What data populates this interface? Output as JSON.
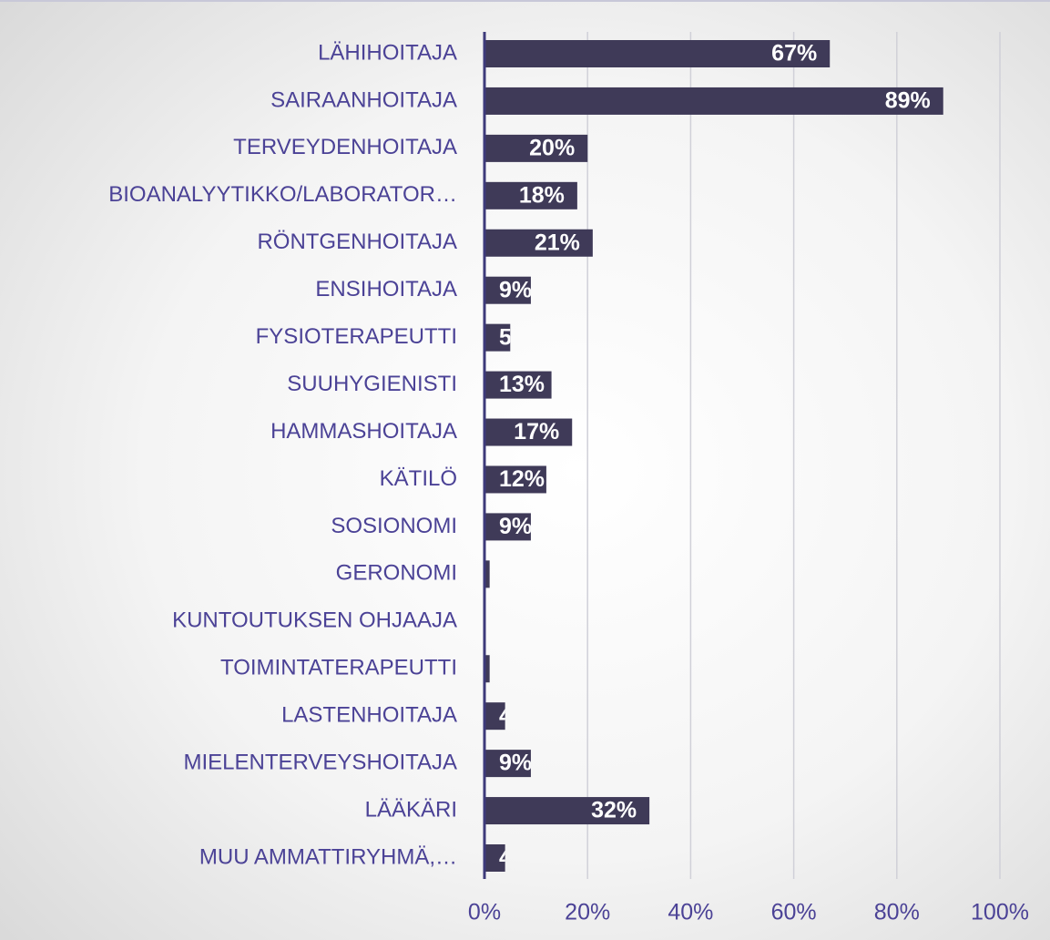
{
  "chart_data": {
    "type": "bar",
    "orientation": "horizontal",
    "categories": [
      "LÄHIHOITAJA",
      "SAIRAANHOITAJA",
      "TERVEYDENHOITAJA",
      "BIOANALYYTIKKO/LABORATOR…",
      "RÖNTGENHOITAJA",
      "ENSIHOITAJA",
      "FYSIOTERAPEUTTI",
      "SUUHYGIENISTI",
      "HAMMASHOITAJA",
      "KÄTILÖ",
      "SOSIONOMI",
      "GERONOMI",
      "KUNTOUTUKSEN OHJAAJA",
      "TOIMINTATERAPEUTTI",
      "LASTENHOITAJA",
      "MIELENTERVEYSHOITAJA",
      "LÄÄKÄRI",
      "MUU AMMATTIRYHMÄ,…"
    ],
    "values": [
      67,
      89,
      20,
      18,
      21,
      9,
      5,
      13,
      17,
      12,
      9,
      1,
      0,
      1,
      4,
      9,
      32,
      4
    ],
    "value_labels": [
      "67%",
      "89%",
      "20%",
      "18%",
      "21%",
      "9%",
      "5%",
      "13%",
      "17%",
      "12%",
      "9%",
      null,
      null,
      null,
      "4%",
      "9%",
      "32%",
      "4%"
    ],
    "color": "#3f3a58",
    "xlim": [
      0,
      100
    ],
    "xticks": [
      {
        "value": 0,
        "label": "0%"
      },
      {
        "value": 20,
        "label": "20%"
      },
      {
        "value": 40,
        "label": "40%"
      },
      {
        "value": 60,
        "label": "60%"
      },
      {
        "value": 80,
        "label": "80%"
      },
      {
        "value": 100,
        "label": "100%"
      }
    ],
    "grid": true
  }
}
